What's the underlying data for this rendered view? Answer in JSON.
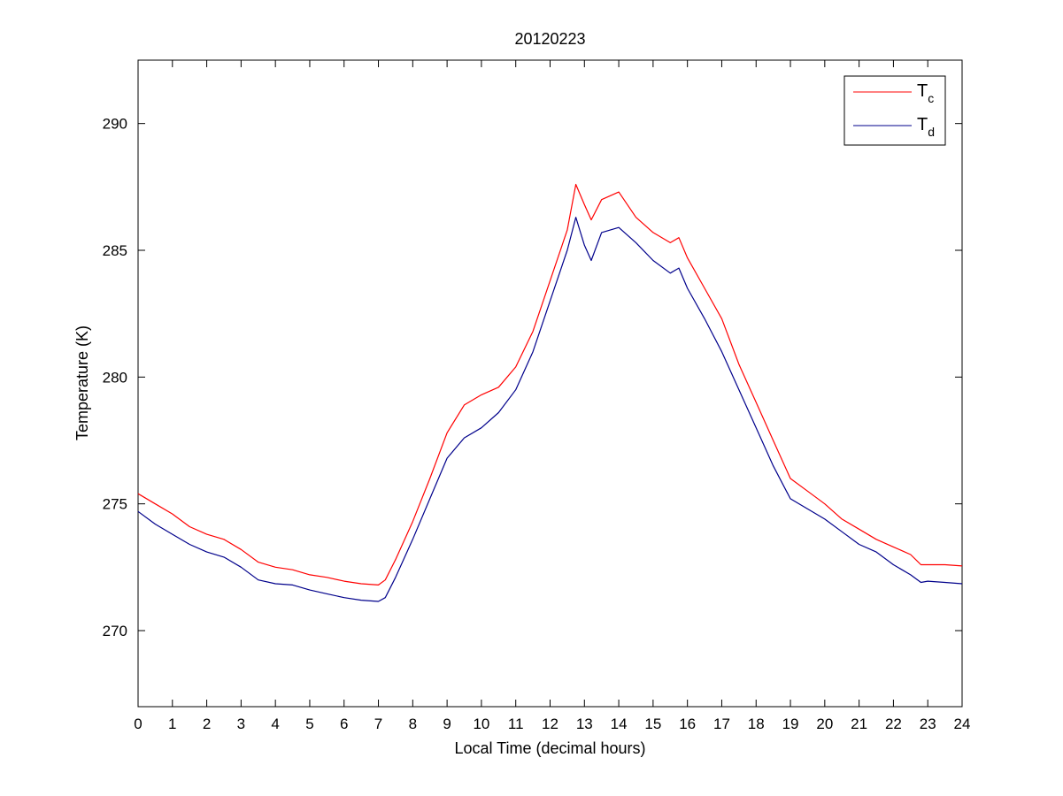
{
  "chart_data": {
    "type": "line",
    "title": "20120223",
    "xlabel": "Local Time (decimal hours)",
    "ylabel": "Temperature (K)",
    "xlim": [
      0,
      24
    ],
    "ylim": [
      267,
      292.5
    ],
    "xticks": [
      0,
      1,
      2,
      3,
      4,
      5,
      6,
      7,
      8,
      9,
      10,
      11,
      12,
      13,
      14,
      15,
      16,
      17,
      18,
      19,
      20,
      21,
      22,
      23,
      24
    ],
    "yticks": [
      270,
      275,
      280,
      285,
      290
    ],
    "grid": false,
    "legend_position": "top-right",
    "series": [
      {
        "name": "Tc",
        "name_main": "T",
        "name_sub": "c",
        "color": "#ff0000",
        "x": [
          0,
          0.5,
          1,
          1.5,
          2,
          2.5,
          3,
          3.5,
          4,
          4.5,
          5,
          5.5,
          6,
          6.5,
          7,
          7.2,
          7.5,
          8,
          8.5,
          9,
          9.5,
          10,
          10.5,
          11,
          11.5,
          12,
          12.5,
          12.75,
          13,
          13.2,
          13.5,
          14,
          14.5,
          15,
          15.5,
          15.75,
          16,
          16.5,
          17,
          17.5,
          18,
          18.5,
          19,
          19.5,
          20,
          20.5,
          21,
          21.5,
          22,
          22.5,
          22.8,
          23,
          23.5,
          24
        ],
        "y": [
          275.4,
          275.0,
          274.6,
          274.1,
          273.8,
          273.6,
          273.2,
          272.7,
          272.5,
          272.4,
          272.2,
          272.1,
          271.95,
          271.85,
          271.8,
          272.0,
          272.8,
          274.3,
          276.0,
          277.8,
          278.9,
          279.3,
          279.6,
          280.4,
          281.8,
          283.8,
          285.8,
          287.6,
          286.8,
          286.2,
          287.0,
          287.3,
          286.3,
          285.7,
          285.3,
          285.5,
          284.7,
          283.5,
          282.3,
          280.5,
          279.0,
          277.5,
          276.0,
          275.5,
          275.0,
          274.4,
          274.0,
          273.6,
          273.3,
          273.0,
          272.6,
          272.6,
          272.6,
          272.55
        ]
      },
      {
        "name": "Td",
        "name_main": "T",
        "name_sub": "d",
        "color": "#00008b",
        "x": [
          0,
          0.5,
          1,
          1.5,
          2,
          2.5,
          3,
          3.5,
          4,
          4.5,
          5,
          5.5,
          6,
          6.5,
          7,
          7.2,
          7.5,
          8,
          8.5,
          9,
          9.5,
          10,
          10.5,
          11,
          11.5,
          12,
          12.5,
          12.75,
          13,
          13.2,
          13.5,
          14,
          14.5,
          15,
          15.5,
          15.75,
          16,
          16.5,
          17,
          17.5,
          18,
          18.5,
          19,
          19.5,
          20,
          20.5,
          21,
          21.5,
          22,
          22.5,
          22.8,
          23,
          23.5,
          24
        ],
        "y": [
          274.7,
          274.2,
          273.8,
          273.4,
          273.1,
          272.9,
          272.5,
          272.0,
          271.85,
          271.8,
          271.6,
          271.45,
          271.3,
          271.2,
          271.15,
          271.3,
          272.1,
          273.6,
          275.2,
          276.8,
          277.6,
          278.0,
          278.6,
          279.5,
          281.0,
          283.0,
          285.0,
          286.3,
          285.2,
          284.6,
          285.7,
          285.9,
          285.3,
          284.6,
          284.1,
          284.3,
          283.5,
          282.3,
          281.0,
          279.5,
          278.0,
          276.5,
          275.2,
          274.8,
          274.4,
          273.9,
          273.4,
          273.1,
          272.6,
          272.2,
          271.9,
          271.95,
          271.9,
          271.85
        ]
      }
    ]
  }
}
